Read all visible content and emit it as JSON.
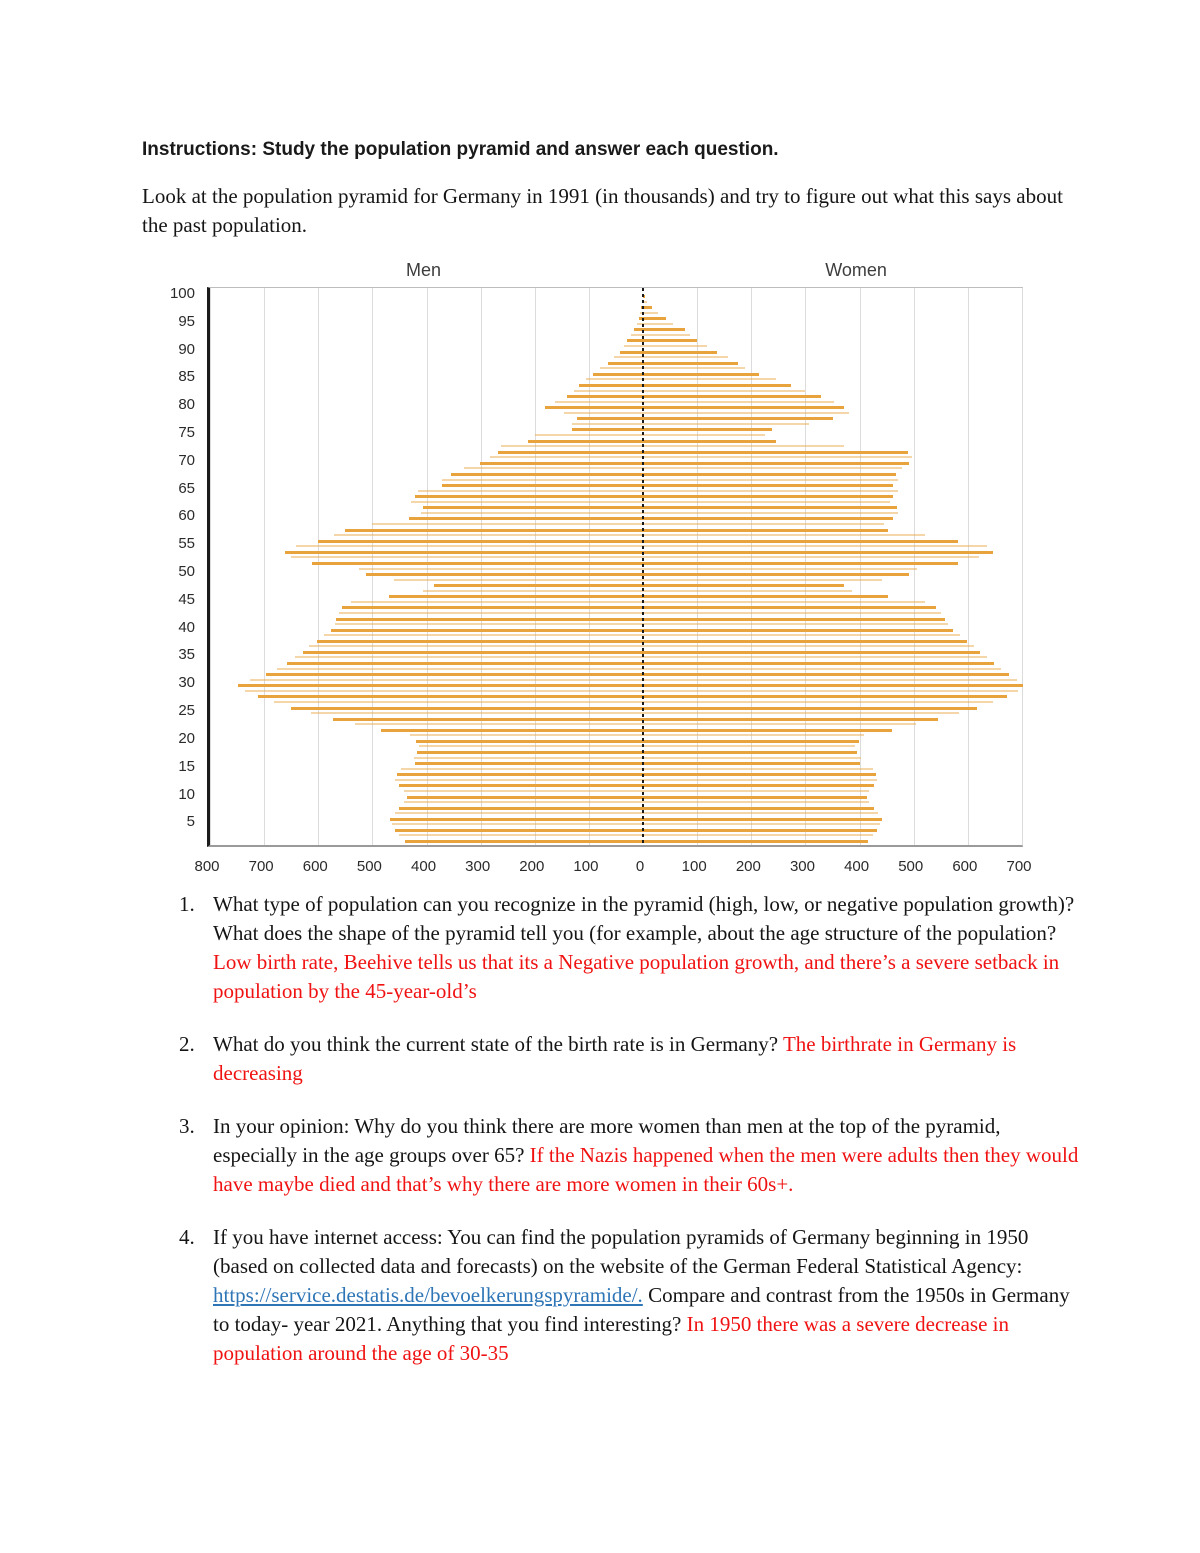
{
  "document": {
    "instructions_heading": "Instructions: Study the population pyramid and answer each question.",
    "intro": "Look at the population pyramid for Germany in 1991 (in thousands) and try to figure out what this says about the past population.",
    "questions": [
      {
        "number": "1.",
        "question": "What type of population can you recognize in the pyramid (high, low, or negative population growth)? What does the shape of the pyramid tell you (for example, about the age structure of the population? ",
        "answer": "Low birth rate, Beehive tells us that its a Negative population growth, and there’s a severe setback in population by the 45-year-old’s"
      },
      {
        "number": "2.",
        "question": "What do you think the current state of the birth rate is in Germany? ",
        "answer": "The birthrate in Germany is decreasing"
      },
      {
        "number": "3.",
        "question": "In your opinion: Why do you think there are more women than men at the top of the pyramid, especially in the age groups over 65? ",
        "answer": "If the Nazis happened when the men were adults then they would have maybe died and that’s why there are more women in their 60s+."
      },
      {
        "number": "4.",
        "question_part1": "If you have internet access: You can find the population pyramids of Germany beginning in 1950 (based on collected data and forecasts) on the website of the German Federal Statistical Agency: ",
        "link_text": "https://service.destatis.de/bevoelkerungspyramide/.",
        "question_part2": " Compare and contrast from the 1950s in Germany to today- year 2021. Anything that you find interesting? ",
        "answer": "In 1950 there was a severe decrease in population around the age of 30-35"
      }
    ],
    "colors": {
      "text": "#151515",
      "answer_red": "#f01212",
      "link_blue": "#2e75b6"
    }
  },
  "chart_data": {
    "type": "bar",
    "variant": "population-pyramid",
    "title_left": "Men",
    "title_right": "Women",
    "units": "thousands of people per single year of age, Germany 1991",
    "age_min": 2,
    "age_max": 100,
    "ages": [
      2,
      3,
      4,
      5,
      6,
      7,
      8,
      9,
      10,
      11,
      12,
      13,
      14,
      15,
      16,
      17,
      18,
      19,
      20,
      21,
      22,
      23,
      24,
      25,
      26,
      27,
      28,
      29,
      30,
      31,
      32,
      33,
      34,
      35,
      36,
      37,
      38,
      39,
      40,
      41,
      42,
      43,
      44,
      45,
      46,
      47,
      48,
      49,
      50,
      51,
      52,
      53,
      54,
      55,
      56,
      57,
      58,
      59,
      60,
      61,
      62,
      63,
      64,
      65,
      66,
      67,
      68,
      69,
      70,
      71,
      72,
      73,
      74,
      75,
      76,
      77,
      78,
      79,
      80,
      81,
      82,
      83,
      84,
      85,
      86,
      87,
      88,
      89,
      90,
      91,
      92,
      93,
      94,
      95,
      96,
      97,
      98,
      99,
      100
    ],
    "series": [
      {
        "name": "Men",
        "side": "left",
        "values": [
          440,
          450,
          458,
          464,
          467,
          459,
          451,
          442,
          436,
          441,
          450,
          458,
          454,
          448,
          422,
          424,
          417,
          414,
          420,
          431,
          484,
          532,
          573,
          614,
          650,
          681,
          711,
          736,
          748,
          727,
          696,
          676,
          657,
          643,
          628,
          618,
          603,
          590,
          577,
          570,
          567,
          561,
          556,
          540,
          470,
          406,
          386,
          461,
          512,
          525,
          611,
          651,
          662,
          641,
          601,
          571,
          551,
          501,
          432,
          411,
          406,
          429,
          421,
          416,
          371,
          372,
          355,
          330,
          301,
          282,
          268,
          263,
          212,
          200,
          131,
          132,
          122,
          146,
          181,
          163,
          141,
          128,
          118,
          106,
          92,
          80,
          65,
          54,
          42,
          35,
          29,
          22,
          16,
          11,
          8,
          6,
          4,
          2,
          1
        ]
      },
      {
        "name": "Women",
        "side": "right",
        "values": [
          415,
          424,
          432,
          438,
          441,
          434,
          426,
          418,
          413,
          417,
          426,
          433,
          430,
          424,
          400,
          402,
          395,
          392,
          398,
          409,
          459,
          505,
          544,
          583,
          616,
          646,
          673,
          692,
          701,
          691,
          676,
          662,
          649,
          636,
          623,
          612,
          598,
          585,
          572,
          564,
          558,
          550,
          541,
          521,
          452,
          386,
          371,
          441,
          491,
          506,
          581,
          621,
          646,
          636,
          581,
          521,
          452,
          446,
          461,
          471,
          470,
          456,
          462,
          471,
          461,
          471,
          468,
          478,
          491,
          496,
          489,
          371,
          246,
          226,
          239,
          306,
          351,
          381,
          371,
          353,
          329,
          299,
          273,
          245,
          214,
          189,
          176,
          157,
          136,
          118,
          99,
          87,
          77,
          56,
          43,
          28,
          16,
          8,
          4
        ]
      }
    ],
    "x_axis": {
      "left_max": 800,
      "right_max": 700,
      "tick_step": 100,
      "tick_labels": [
        "800",
        "700",
        "600",
        "500",
        "400",
        "300",
        "200",
        "100",
        "0",
        "100",
        "200",
        "300",
        "400",
        "500",
        "600",
        "700"
      ]
    },
    "y_axis": {
      "tick_step": 5,
      "tick_labels": [
        "100",
        "95",
        "90",
        "85",
        "80",
        "75",
        "70",
        "65",
        "60",
        "55",
        "50",
        "45",
        "40",
        "35",
        "30",
        "25",
        "20",
        "15",
        "10",
        "5"
      ]
    },
    "style": {
      "bar_color_dark": "#E9A33D",
      "bar_color_light": "rgba(233,163,61,0.45)",
      "gridline_color": "#dcdcdc",
      "center_line_color": "#1a1a1a",
      "grid": true,
      "legend": false
    }
  }
}
